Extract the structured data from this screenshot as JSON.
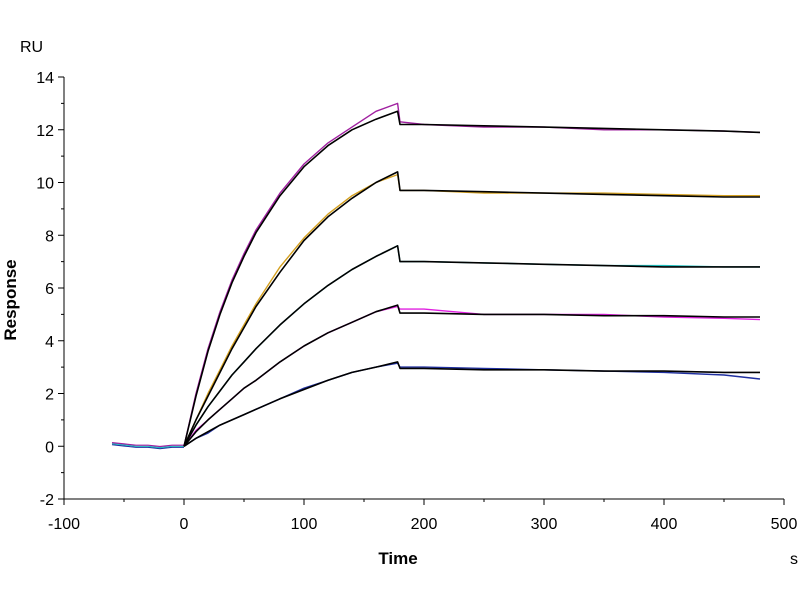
{
  "chart_data": {
    "type": "line",
    "ylabel": "Response",
    "xlabel": "Time",
    "y_unit": "RU",
    "x_unit": "s",
    "xlim": [
      -100,
      500
    ],
    "ylim": [
      -2,
      14
    ],
    "x_ticks": [
      -100,
      0,
      100,
      200,
      300,
      400,
      500
    ],
    "y_ticks": [
      -2,
      0,
      2,
      4,
      6,
      8,
      10,
      12,
      14
    ],
    "x_tick_labels": [
      "-100",
      "0",
      "100",
      "200",
      "300",
      "400",
      "500"
    ],
    "y_tick_labels": [
      "-2",
      "0",
      "2",
      "4",
      "6",
      "8",
      "10",
      "12",
      "14"
    ],
    "grid": false,
    "legend": "none",
    "baseline": {
      "x": [
        -60,
        -50,
        -40,
        -30,
        -20,
        -10,
        0
      ],
      "y": [
        0.1,
        0.05,
        0.0,
        0.0,
        -0.05,
        0.0,
        0.0
      ]
    },
    "series": [
      {
        "color": "#a020a0",
        "x": [
          0,
          10,
          20,
          30,
          40,
          50,
          60,
          80,
          100,
          120,
          140,
          160,
          178,
          180,
          200,
          250,
          300,
          350,
          400,
          450,
          480
        ],
        "y": [
          0,
          2.0,
          3.7,
          5.1,
          6.3,
          7.3,
          8.2,
          9.6,
          10.7,
          11.5,
          12.1,
          12.7,
          13.0,
          12.3,
          12.2,
          12.1,
          12.1,
          12.0,
          12.0,
          11.95,
          11.9
        ]
      },
      {
        "color": "#d4a020",
        "x": [
          0,
          10,
          20,
          30,
          40,
          50,
          60,
          80,
          100,
          120,
          140,
          160,
          178,
          180,
          200,
          250,
          300,
          350,
          400,
          450,
          480
        ],
        "y": [
          0,
          1.0,
          2.0,
          2.9,
          3.8,
          4.6,
          5.4,
          6.8,
          7.9,
          8.8,
          9.5,
          10.0,
          10.3,
          9.7,
          9.7,
          9.6,
          9.6,
          9.6,
          9.55,
          9.5,
          9.5
        ]
      },
      {
        "color": "#20c0c0",
        "x": [
          0,
          10,
          20,
          30,
          40,
          50,
          60,
          80,
          100,
          120,
          140,
          160,
          178,
          180,
          200,
          250,
          300,
          350,
          400,
          450,
          480
        ],
        "y": [
          0,
          0.8,
          1.5,
          2.1,
          2.7,
          3.2,
          3.7,
          4.6,
          5.4,
          6.1,
          6.7,
          7.2,
          7.6,
          7.0,
          7.0,
          6.95,
          6.9,
          6.85,
          6.85,
          6.8,
          6.8
        ]
      },
      {
        "color": "#e020e0",
        "x": [
          0,
          10,
          20,
          30,
          40,
          50,
          60,
          80,
          100,
          120,
          140,
          160,
          178,
          180,
          200,
          250,
          300,
          350,
          400,
          450,
          480
        ],
        "y": [
          0,
          0.6,
          1.0,
          1.4,
          1.8,
          2.2,
          2.5,
          3.2,
          3.8,
          4.3,
          4.7,
          5.1,
          5.3,
          5.2,
          5.2,
          5.0,
          5.0,
          5.0,
          4.9,
          4.85,
          4.8
        ]
      },
      {
        "color": "#2030a0",
        "x": [
          0,
          10,
          20,
          30,
          40,
          50,
          60,
          80,
          100,
          120,
          140,
          160,
          178,
          180,
          200,
          250,
          300,
          350,
          400,
          450,
          480
        ],
        "y": [
          0,
          0.3,
          0.5,
          0.8,
          1.0,
          1.2,
          1.4,
          1.8,
          2.2,
          2.5,
          2.8,
          3.0,
          3.15,
          3.0,
          3.0,
          2.95,
          2.9,
          2.85,
          2.8,
          2.7,
          2.55
        ]
      }
    ],
    "fits": [
      {
        "color": "#000000",
        "x": [
          0,
          10,
          20,
          30,
          40,
          50,
          60,
          80,
          100,
          120,
          140,
          160,
          178,
          180,
          200,
          250,
          300,
          350,
          400,
          450,
          480
        ],
        "y": [
          0,
          1.9,
          3.6,
          5.0,
          6.2,
          7.2,
          8.1,
          9.5,
          10.6,
          11.4,
          12.0,
          12.4,
          12.7,
          12.2,
          12.2,
          12.15,
          12.1,
          12.05,
          12.0,
          11.95,
          11.9
        ]
      },
      {
        "color": "#000000",
        "x": [
          0,
          10,
          20,
          30,
          40,
          50,
          60,
          80,
          100,
          120,
          140,
          160,
          178,
          180,
          200,
          250,
          300,
          350,
          400,
          450,
          480
        ],
        "y": [
          0,
          1.0,
          1.9,
          2.8,
          3.7,
          4.5,
          5.3,
          6.6,
          7.8,
          8.7,
          9.4,
          10.0,
          10.4,
          9.7,
          9.7,
          9.65,
          9.6,
          9.55,
          9.5,
          9.45,
          9.45
        ]
      },
      {
        "color": "#000000",
        "x": [
          0,
          10,
          20,
          30,
          40,
          50,
          60,
          80,
          100,
          120,
          140,
          160,
          178,
          180,
          200,
          250,
          300,
          350,
          400,
          450,
          480
        ],
        "y": [
          0,
          0.8,
          1.5,
          2.1,
          2.7,
          3.2,
          3.7,
          4.6,
          5.4,
          6.1,
          6.7,
          7.2,
          7.6,
          7.0,
          7.0,
          6.95,
          6.9,
          6.85,
          6.8,
          6.8,
          6.8
        ]
      },
      {
        "color": "#000000",
        "x": [
          0,
          10,
          20,
          30,
          40,
          50,
          60,
          80,
          100,
          120,
          140,
          160,
          178,
          180,
          200,
          250,
          300,
          350,
          400,
          450,
          480
        ],
        "y": [
          0,
          0.55,
          1.0,
          1.4,
          1.8,
          2.2,
          2.5,
          3.2,
          3.8,
          4.3,
          4.7,
          5.1,
          5.35,
          5.05,
          5.05,
          5.0,
          5.0,
          4.95,
          4.95,
          4.9,
          4.9
        ]
      },
      {
        "color": "#000000",
        "x": [
          0,
          10,
          20,
          30,
          40,
          50,
          60,
          80,
          100,
          120,
          140,
          160,
          178,
          180,
          200,
          250,
          300,
          350,
          400,
          450,
          480
        ],
        "y": [
          0,
          0.3,
          0.55,
          0.8,
          1.0,
          1.2,
          1.4,
          1.8,
          2.15,
          2.5,
          2.8,
          3.0,
          3.2,
          2.95,
          2.95,
          2.9,
          2.9,
          2.85,
          2.85,
          2.8,
          2.8
        ]
      }
    ]
  }
}
